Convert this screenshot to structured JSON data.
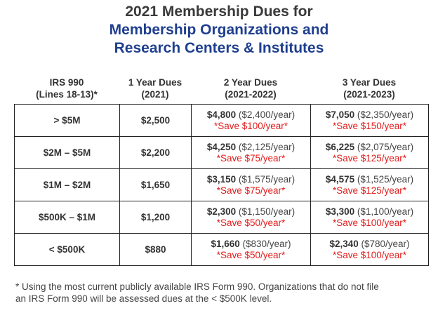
{
  "title": {
    "line1": "2021 Membership Dues for",
    "line2": "Membership Organizations and",
    "line3": "Research Centers & Institutes"
  },
  "headers": {
    "irs_line1": "IRS 990",
    "irs_line2": "(Lines 18-13)*",
    "one_line1": "1 Year Dues",
    "one_line2": "(2021)",
    "two_line1": "2 Year Dues",
    "two_line2": "(2021-2022)",
    "three_line1": "3 Year Dues",
    "three_line2": "(2021-2023)"
  },
  "rows": [
    {
      "range": "> $5M",
      "one": "$2,500",
      "two_total": "$4,800",
      "two_per": "($2,400/year)",
      "two_save": "*Save $100/year*",
      "three_total": "$7,050",
      "three_per": "($2,350/year)",
      "three_save": "*Save $150/year*"
    },
    {
      "range": "$2M – $5M",
      "one": "$2,200",
      "two_total": "$4,250",
      "two_per": "($2,125/year)",
      "two_save": "*Save $75/year*",
      "three_total": "$6,225",
      "three_per": "($2,075/year)",
      "three_save": "*Save $125/year*"
    },
    {
      "range": "$1M – $2M",
      "one": "$1,650",
      "two_total": "$3,150",
      "two_per": "($1,575/year)",
      "two_save": "*Save $75/year*",
      "three_total": "$4,575",
      "three_per": "($1,525/year)",
      "three_save": "*Save $125/year*"
    },
    {
      "range": "$500K – $1M",
      "one": "$1,200",
      "two_total": "$2,300",
      "two_per": "($1,150/year)",
      "two_save": "*Save $50/year*",
      "three_total": "$3,300",
      "three_per": "($1,100/year)",
      "three_save": "*Save $100/year*"
    },
    {
      "range": "< $500K",
      "one": "$880",
      "two_total": "$1,660",
      "two_per": "($830/year)",
      "two_save": "*Save $50/year*",
      "three_total": "$2,340",
      "three_per": "($780/year)",
      "three_save": "*Save $100/year*"
    }
  ],
  "footnote": {
    "line1": "* Using the most current publicly available IRS Form 990. Organizations that do not file",
    "line2": "an IRS Form 990 will be assessed dues at the < $500K level."
  },
  "colors": {
    "title_blue": "#1f3f8f",
    "save_red": "#e11b1b"
  }
}
